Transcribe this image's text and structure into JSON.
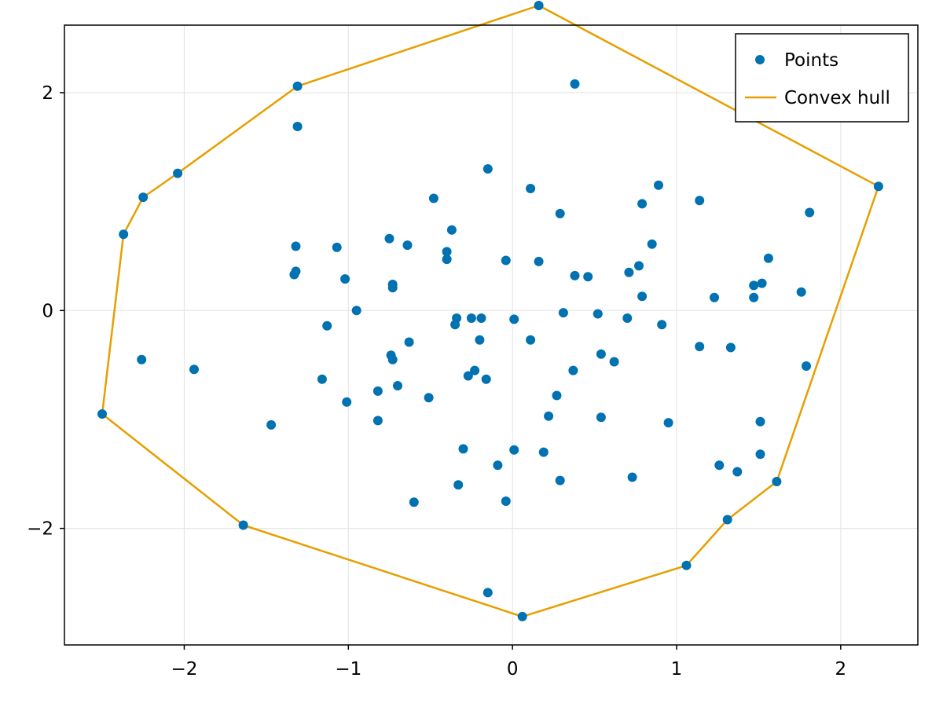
{
  "chart_data": {
    "type": "scatter",
    "title": "",
    "xlabel": "",
    "ylabel": "",
    "xlim": [
      -2.73,
      2.47
    ],
    "ylim": [
      -3.07,
      2.62
    ],
    "xticks": [
      -2,
      -1,
      0,
      1,
      2
    ],
    "yticks": [
      -2,
      0,
      2
    ],
    "xtick_labels": [
      "−2",
      "−1",
      "0",
      "1",
      "2"
    ],
    "ytick_labels": [
      "−2",
      "0",
      "2"
    ],
    "grid": true,
    "legend_position": "top-right",
    "colors": {
      "points": "#0072b2",
      "hull": "#e69f00",
      "grid": "#e6e6e6",
      "frame": "#000000"
    },
    "series": [
      {
        "name": "Points",
        "kind": "scatter",
        "points": [
          [
            0.16,
            2.8
          ],
          [
            -1.31,
            2.06
          ],
          [
            0.38,
            2.08
          ],
          [
            -1.31,
            1.69
          ],
          [
            -2.04,
            1.26
          ],
          [
            -2.25,
            1.04
          ],
          [
            -0.15,
            1.3
          ],
          [
            0.11,
            1.12
          ],
          [
            0.89,
            1.15
          ],
          [
            2.23,
            1.14
          ],
          [
            -0.48,
            1.03
          ],
          [
            1.14,
            1.01
          ],
          [
            0.79,
            0.98
          ],
          [
            0.29,
            0.89
          ],
          [
            1.81,
            0.9
          ],
          [
            -2.37,
            0.7
          ],
          [
            -0.37,
            0.74
          ],
          [
            -0.75,
            0.66
          ],
          [
            -1.32,
            0.59
          ],
          [
            -1.07,
            0.58
          ],
          [
            -0.64,
            0.6
          ],
          [
            0.85,
            0.61
          ],
          [
            -0.4,
            0.54
          ],
          [
            -0.4,
            0.47
          ],
          [
            -0.04,
            0.46
          ],
          [
            0.16,
            0.45
          ],
          [
            1.56,
            0.48
          ],
          [
            0.77,
            0.41
          ],
          [
            0.71,
            0.35
          ],
          [
            -1.32,
            0.36
          ],
          [
            -1.33,
            0.33
          ],
          [
            -1.02,
            0.29
          ],
          [
            0.38,
            0.32
          ],
          [
            0.46,
            0.31
          ],
          [
            -0.73,
            0.24
          ],
          [
            -0.73,
            0.21
          ],
          [
            1.47,
            0.23
          ],
          [
            1.52,
            0.25
          ],
          [
            1.76,
            0.17
          ],
          [
            0.79,
            0.13
          ],
          [
            1.23,
            0.12
          ],
          [
            1.47,
            0.12
          ],
          [
            -0.95,
            0.0
          ],
          [
            0.31,
            -0.02
          ],
          [
            0.52,
            -0.03
          ],
          [
            -0.34,
            -0.07
          ],
          [
            -0.25,
            -0.07
          ],
          [
            -0.19,
            -0.07
          ],
          [
            0.01,
            -0.08
          ],
          [
            0.7,
            -0.07
          ],
          [
            -1.13,
            -0.14
          ],
          [
            -0.35,
            -0.13
          ],
          [
            0.91,
            -0.13
          ],
          [
            -0.2,
            -0.27
          ],
          [
            0.11,
            -0.27
          ],
          [
            -0.63,
            -0.29
          ],
          [
            1.14,
            -0.33
          ],
          [
            1.33,
            -0.34
          ],
          [
            -0.74,
            -0.41
          ],
          [
            0.54,
            -0.4
          ],
          [
            -0.73,
            -0.45
          ],
          [
            0.62,
            -0.47
          ],
          [
            -2.26,
            -0.45
          ],
          [
            -1.94,
            -0.54
          ],
          [
            1.79,
            -0.51
          ],
          [
            0.37,
            -0.55
          ],
          [
            -0.23,
            -0.55
          ],
          [
            -0.27,
            -0.6
          ],
          [
            -0.16,
            -0.63
          ],
          [
            -1.16,
            -0.63
          ],
          [
            -0.7,
            -0.69
          ],
          [
            -0.82,
            -0.74
          ],
          [
            0.27,
            -0.78
          ],
          [
            -0.51,
            -0.8
          ],
          [
            -1.01,
            -0.84
          ],
          [
            0.22,
            -0.97
          ],
          [
            0.54,
            -0.98
          ],
          [
            -0.82,
            -1.01
          ],
          [
            1.51,
            -1.02
          ],
          [
            0.95,
            -1.03
          ],
          [
            -1.47,
            -1.05
          ],
          [
            -2.5,
            -0.95
          ],
          [
            -0.3,
            -1.27
          ],
          [
            0.01,
            -1.28
          ],
          [
            0.19,
            -1.3
          ],
          [
            1.51,
            -1.32
          ],
          [
            -0.09,
            -1.42
          ],
          [
            1.26,
            -1.42
          ],
          [
            1.37,
            -1.48
          ],
          [
            0.73,
            -1.53
          ],
          [
            0.29,
            -1.56
          ],
          [
            1.61,
            -1.57
          ],
          [
            -0.33,
            -1.6
          ],
          [
            -0.04,
            -1.75
          ],
          [
            -0.6,
            -1.76
          ],
          [
            1.31,
            -1.92
          ],
          [
            -1.64,
            -1.97
          ],
          [
            1.06,
            -2.34
          ],
          [
            -0.15,
            -2.59
          ],
          [
            0.06,
            -2.81
          ]
        ]
      },
      {
        "name": "Convex hull",
        "kind": "line",
        "points": [
          [
            0.16,
            2.8
          ],
          [
            2.23,
            1.14
          ],
          [
            1.61,
            -1.57
          ],
          [
            1.31,
            -1.92
          ],
          [
            1.06,
            -2.34
          ],
          [
            0.06,
            -2.81
          ],
          [
            -1.64,
            -1.97
          ],
          [
            -2.5,
            -0.95
          ],
          [
            -2.37,
            0.7
          ],
          [
            -2.25,
            1.04
          ],
          [
            -2.04,
            1.26
          ],
          [
            -1.31,
            2.06
          ],
          [
            0.16,
            2.8
          ]
        ]
      }
    ]
  }
}
